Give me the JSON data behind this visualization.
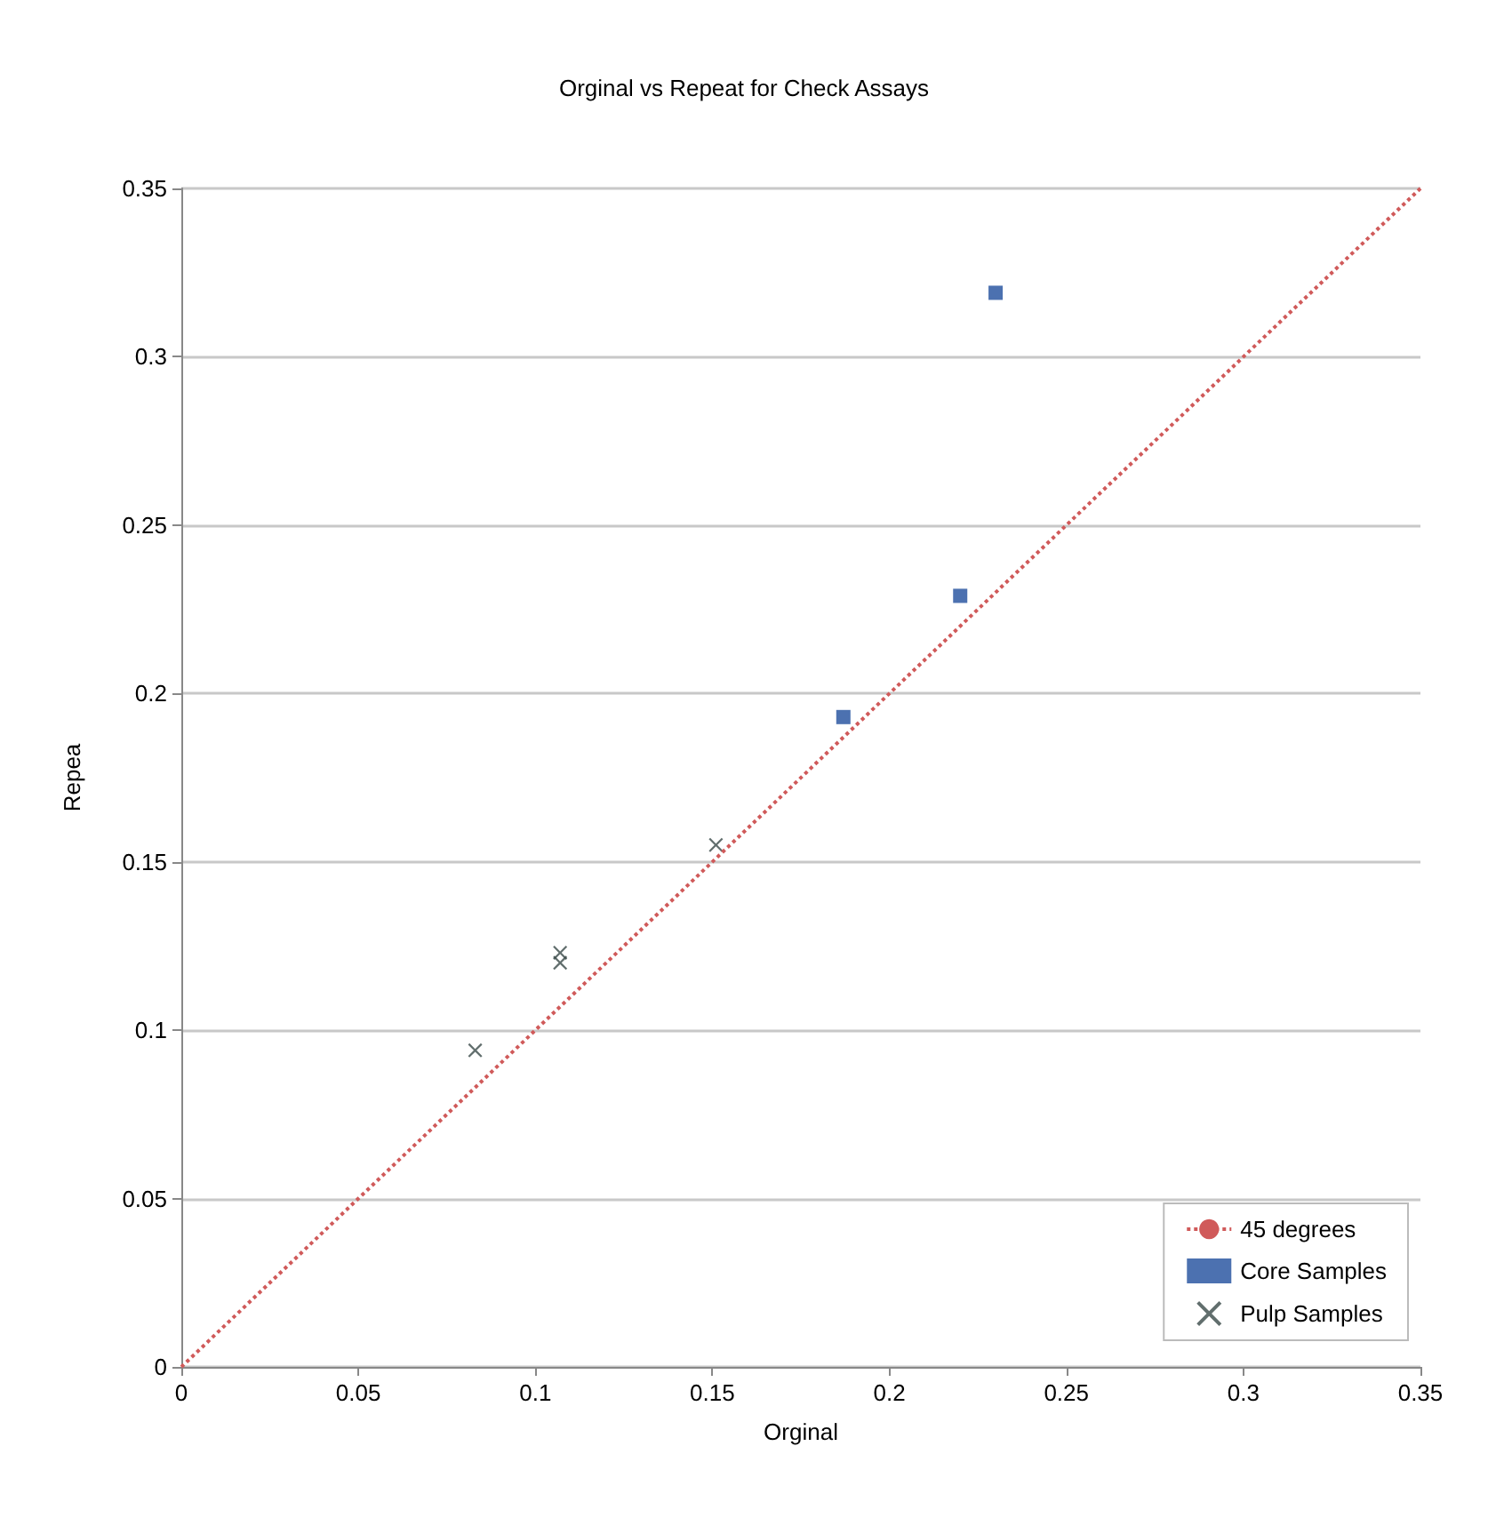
{
  "chart_data": {
    "type": "scatter",
    "title": "Orginal vs Repeat for Check Assays",
    "xlabel": "Orginal",
    "ylabel": "Repea",
    "series": [
      {
        "name": "45 degrees",
        "type": "line",
        "line_style": "dotted",
        "marker": "none",
        "color": "#d05a5a",
        "x": [
          0,
          0.35
        ],
        "values": [
          0,
          0.35
        ]
      },
      {
        "name": "Core Samples",
        "marker": "square",
        "color": "#1f4e9c",
        "x": [
          0.23,
          0.22,
          0.187
        ],
        "values": [
          0.319,
          0.229,
          0.193
        ]
      },
      {
        "name": "Pulp Samples",
        "marker": "cross",
        "color": "#3a4a48",
        "x": [
          0.151,
          0.107,
          0.107,
          0.083
        ],
        "values": [
          0.155,
          0.123,
          0.12,
          0.094
        ]
      }
    ],
    "xlim": [
      0,
      0.35
    ],
    "xticks": [
      0,
      0.05,
      0.1,
      0.15,
      0.2,
      0.25,
      0.3,
      0.35
    ],
    "ylim": [
      0,
      0.35
    ],
    "yticks": [
      0,
      0.05,
      0.1,
      0.15,
      0.2,
      0.25,
      0.3,
      0.35
    ],
    "grid": "y",
    "legend": "bottom right"
  }
}
